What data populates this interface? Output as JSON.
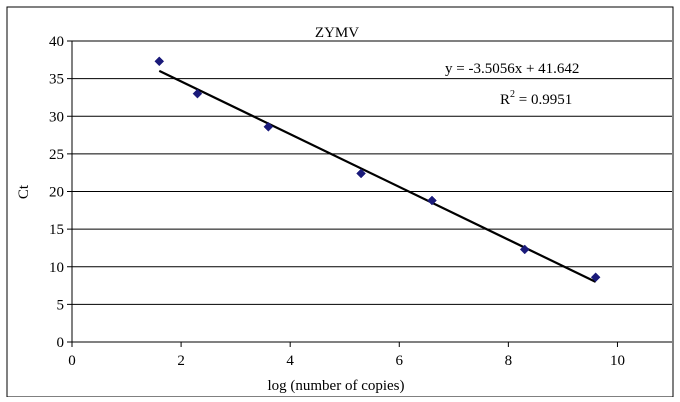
{
  "chart_data": {
    "type": "scatter",
    "title": "ZYMV",
    "xlabel": "log (number of copies)",
    "ylabel": "Ct",
    "xlim": [
      0,
      11
    ],
    "ylim": [
      0,
      40
    ],
    "xticks": [
      0,
      2,
      4,
      6,
      8,
      10
    ],
    "yticks": [
      0,
      5,
      10,
      15,
      20,
      25,
      30,
      35,
      40
    ],
    "grid": "horizontal",
    "marker": "diamond",
    "marker_color": "#1a1a7a",
    "trendline": {
      "type": "linear",
      "slope": -3.5056,
      "intercept": 41.642,
      "x_range": [
        1.6,
        9.6
      ]
    },
    "annotations": {
      "equation": "y = -3.5056x + 41.642",
      "r2_prefix": "R",
      "r2_exponent": "2",
      "r2_value": " = 0.9951"
    },
    "points": [
      {
        "x": 1.6,
        "y": 37.3
      },
      {
        "x": 2.3,
        "y": 33.0
      },
      {
        "x": 3.6,
        "y": 28.6
      },
      {
        "x": 5.3,
        "y": 22.4
      },
      {
        "x": 6.6,
        "y": 18.8
      },
      {
        "x": 8.3,
        "y": 12.3
      },
      {
        "x": 9.6,
        "y": 8.6
      }
    ]
  }
}
